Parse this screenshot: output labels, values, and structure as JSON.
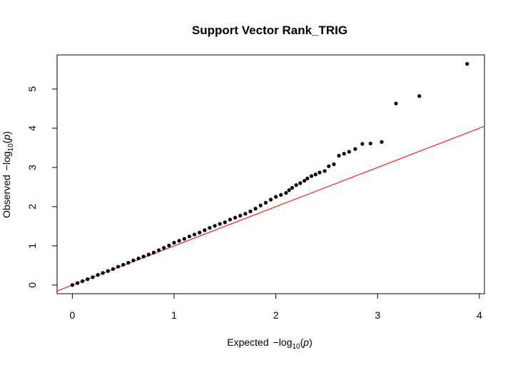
{
  "chart_data": {
    "type": "scatter",
    "title": "Support Vector Rank_TRIG",
    "xlabel": {
      "prefix": "Expected",
      "minus": "−",
      "log": "log",
      "base": "10",
      "open": "(",
      "var": "p",
      "close": ")"
    },
    "ylabel": {
      "prefix": "Observed",
      "minus": "−",
      "log": "log",
      "base": "10",
      "open": "(",
      "var": "p",
      "close": ")"
    },
    "xlim": [
      -0.15,
      4.05
    ],
    "ylim": [
      -0.22,
      5.87
    ],
    "xticks": [
      0,
      1,
      2,
      3,
      4
    ],
    "xtick_labels": [
      "0",
      "1",
      "2",
      "3",
      "4"
    ],
    "yticks": [
      0,
      1,
      2,
      3,
      4,
      5
    ],
    "ytick_labels": [
      "0",
      "1",
      "2",
      "3",
      "4",
      "5"
    ],
    "grid": false,
    "point_color": "#000000",
    "reference_line": {
      "slope": 1,
      "intercept": 0,
      "color": "#ff0000"
    },
    "series": [
      {
        "points": [
          [
            0.0,
            0.0
          ],
          [
            0.05,
            0.05
          ],
          [
            0.1,
            0.1
          ],
          [
            0.15,
            0.15
          ],
          [
            0.2,
            0.2
          ],
          [
            0.25,
            0.26
          ],
          [
            0.3,
            0.31
          ],
          [
            0.35,
            0.36
          ],
          [
            0.4,
            0.41
          ],
          [
            0.45,
            0.47
          ],
          [
            0.5,
            0.52
          ],
          [
            0.55,
            0.57
          ],
          [
            0.6,
            0.63
          ],
          [
            0.65,
            0.68
          ],
          [
            0.7,
            0.73
          ],
          [
            0.75,
            0.78
          ],
          [
            0.8,
            0.83
          ],
          [
            0.85,
            0.89
          ],
          [
            0.9,
            0.95
          ],
          [
            0.95,
            1.01
          ],
          [
            1.0,
            1.08
          ],
          [
            1.05,
            1.13
          ],
          [
            1.1,
            1.18
          ],
          [
            1.15,
            1.24
          ],
          [
            1.2,
            1.29
          ],
          [
            1.25,
            1.34
          ],
          [
            1.3,
            1.4
          ],
          [
            1.35,
            1.46
          ],
          [
            1.4,
            1.51
          ],
          [
            1.45,
            1.56
          ],
          [
            1.5,
            1.6
          ],
          [
            1.55,
            1.67
          ],
          [
            1.6,
            1.72
          ],
          [
            1.65,
            1.77
          ],
          [
            1.7,
            1.82
          ],
          [
            1.75,
            1.88
          ],
          [
            1.8,
            1.95
          ],
          [
            1.85,
            2.03
          ],
          [
            1.9,
            2.1
          ],
          [
            1.95,
            2.18
          ],
          [
            2.0,
            2.25
          ],
          [
            2.05,
            2.3
          ],
          [
            2.1,
            2.35
          ],
          [
            2.13,
            2.42
          ],
          [
            2.16,
            2.48
          ],
          [
            2.2,
            2.55
          ],
          [
            2.24,
            2.6
          ],
          [
            2.28,
            2.66
          ],
          [
            2.31,
            2.72
          ],
          [
            2.35,
            2.78
          ],
          [
            2.39,
            2.82
          ],
          [
            2.43,
            2.87
          ],
          [
            2.48,
            2.91
          ],
          [
            2.52,
            3.03
          ],
          [
            2.57,
            3.08
          ],
          [
            2.62,
            3.3
          ],
          [
            2.67,
            3.35
          ],
          [
            2.72,
            3.4
          ],
          [
            2.78,
            3.47
          ],
          [
            2.85,
            3.6
          ],
          [
            2.93,
            3.61
          ],
          [
            3.04,
            3.65
          ],
          [
            3.18,
            4.63
          ],
          [
            3.41,
            4.82
          ],
          [
            3.88,
            5.64
          ]
        ]
      }
    ]
  }
}
